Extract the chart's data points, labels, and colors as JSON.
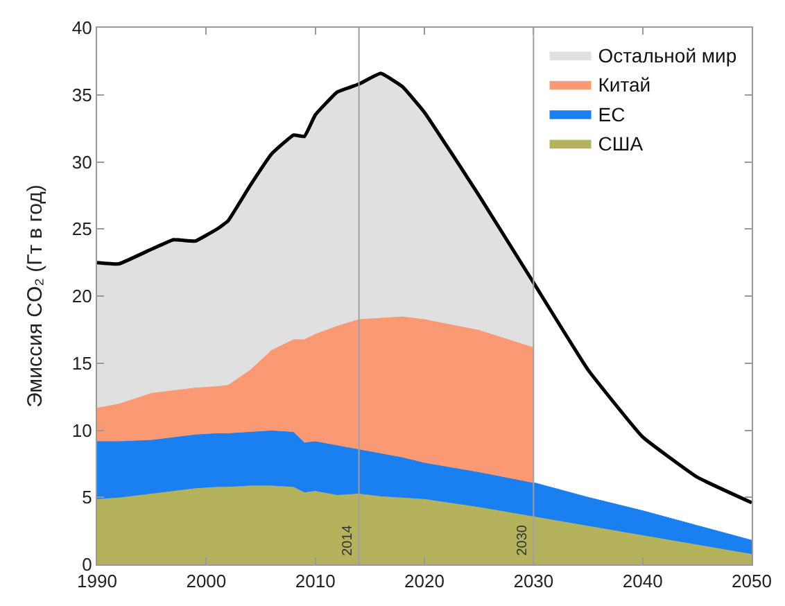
{
  "chart_data": {
    "type": "area",
    "stacked": true,
    "ylabel": "Эмиссия CO₂ (Гт в год)",
    "x": [
      1990,
      1992,
      1995,
      1997,
      1999,
      2001,
      2002,
      2004,
      2006,
      2008,
      2009,
      2010,
      2012,
      2014,
      2016,
      2018,
      2020,
      2025,
      2030,
      2035,
      2040,
      2045,
      2050
    ],
    "series": [
      {
        "name": "США",
        "color": "#b5b25e",
        "values": [
          4.9,
          5.0,
          5.3,
          5.5,
          5.7,
          5.8,
          5.8,
          5.9,
          5.9,
          5.8,
          5.4,
          5.5,
          5.2,
          5.3,
          5.1,
          5.0,
          4.9,
          4.3,
          3.6,
          2.9,
          2.2,
          1.5,
          0.8
        ]
      },
      {
        "name": "ЕС",
        "color": "#1a7ff0",
        "values": [
          4.3,
          4.2,
          4.0,
          4.0,
          4.0,
          4.0,
          4.0,
          4.0,
          4.1,
          4.1,
          3.7,
          3.7,
          3.7,
          3.3,
          3.2,
          3.0,
          2.7,
          2.6,
          2.5,
          2.1,
          1.8,
          1.4,
          1.0
        ]
      },
      {
        "name": "Китай",
        "color": "#f99a74",
        "x": [
          1990,
          1992,
          1995,
          1997,
          1999,
          2001,
          2002,
          2004,
          2006,
          2008,
          2009,
          2010,
          2012,
          2014,
          2016,
          2018,
          2020,
          2025,
          2030
        ],
        "values": [
          2.5,
          2.8,
          3.5,
          3.5,
          3.5,
          3.5,
          3.6,
          4.6,
          6.0,
          6.9,
          7.7,
          8.0,
          8.9,
          9.7,
          10.1,
          10.5,
          10.7,
          10.6,
          10.1
        ]
      },
      {
        "name": "Остальной мир",
        "color": "#e0e0e0",
        "x": [
          1990,
          1992,
          1995,
          1997,
          1999,
          2001,
          2002,
          2004,
          2006,
          2008,
          2009,
          2010,
          2012,
          2014,
          2016,
          2018,
          2020,
          2025,
          2030
        ],
        "values": [
          10.8,
          10.4,
          10.7,
          11.2,
          10.9,
          11.7,
          12.2,
          13.7,
          14.6,
          15.2,
          15.1,
          16.3,
          17.4,
          17.5,
          18.2,
          17.1,
          15.4,
          10.0,
          4.8
        ]
      },
      {
        "type": "line",
        "color": "#000000",
        "values": [
          22.5,
          22.4,
          23.5,
          24.2,
          24.1,
          25.0,
          25.6,
          28.2,
          30.6,
          32.0,
          31.9,
          33.5,
          35.2,
          35.8,
          36.6,
          35.6,
          33.7,
          27.5,
          21.0,
          14.5,
          9.5,
          6.5,
          4.6
        ]
      }
    ],
    "xlim": [
      1990,
      2050
    ],
    "xticks": [
      1990,
      2000,
      2010,
      2020,
      2030,
      2040,
      2050
    ],
    "ylim": [
      0,
      40
    ],
    "yticks": [
      0,
      5,
      10,
      15,
      20,
      25,
      30,
      35,
      40
    ],
    "grid": false,
    "legend": "top right",
    "ref_lines": [
      {
        "axis": "x",
        "value": 2014,
        "label": "2014",
        "color": "#a0a0a0"
      },
      {
        "axis": "x",
        "value": 2030,
        "label": "2030",
        "color": "#a0a0a0"
      }
    ]
  }
}
